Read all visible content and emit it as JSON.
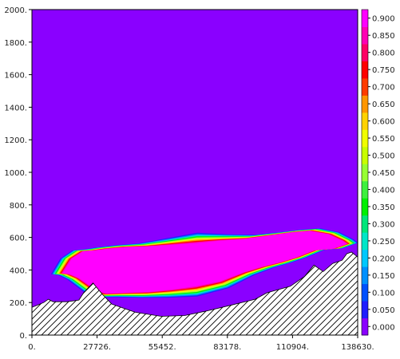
{
  "chart_data": {
    "type": "heatmap",
    "xlim": [
      0,
      138630
    ],
    "ylim": [
      0,
      2000
    ],
    "x_ticks": [
      0,
      27726,
      55452,
      83178,
      110904,
      138630
    ],
    "x_tick_labels": [
      "0.",
      "27726.",
      "55452.",
      "83178.",
      "110904.",
      "138630."
    ],
    "y_ticks": [
      0,
      200,
      400,
      600,
      800,
      1000,
      1200,
      1400,
      1600,
      1800,
      2000
    ],
    "y_tick_labels": [
      "0.",
      "200.",
      "400.",
      "600.",
      "800.",
      "1000.",
      "1200.",
      "1400.",
      "1600.",
      "1800.",
      "2000."
    ],
    "colorbar": {
      "levels": [
        0.0,
        0.05,
        0.1,
        0.15,
        0.2,
        0.25,
        0.3,
        0.35,
        0.4,
        0.45,
        0.5,
        0.55,
        0.6,
        0.65,
        0.7,
        0.75,
        0.8,
        0.85,
        0.9
      ],
      "labels": [
        "0.000",
        "0.050",
        "0.100",
        "0.150",
        "0.200",
        "0.250",
        "0.300",
        "0.350",
        "0.400",
        "0.450",
        "0.500",
        "0.550",
        "0.600",
        "0.650",
        "0.700",
        "0.750",
        "0.800",
        "0.850",
        "0.900"
      ],
      "colors": [
        "#8a00ff",
        "#1e1eff",
        "#0050ff",
        "#0090ff",
        "#00c8ff",
        "#00e6c8",
        "#00e67a",
        "#00f000",
        "#3cf03c",
        "#96ff32",
        "#c8ff00",
        "#f0ff00",
        "#ffd200",
        "#ff9600",
        "#ff3c00",
        "#ff0000",
        "#ff0064",
        "#ff00b4",
        "#ff00ff"
      ]
    },
    "background_value": 0.0,
    "terrain_profile": [
      [
        0,
        170
      ],
      [
        5000,
        200
      ],
      [
        7000,
        220
      ],
      [
        9000,
        205
      ],
      [
        15000,
        205
      ],
      [
        20000,
        215
      ],
      [
        22000,
        260
      ],
      [
        26000,
        320
      ],
      [
        30000,
        250
      ],
      [
        34000,
        190
      ],
      [
        40000,
        160
      ],
      [
        44000,
        140
      ],
      [
        55000,
        115
      ],
      [
        65000,
        120
      ],
      [
        75000,
        150
      ],
      [
        85000,
        185
      ],
      [
        95000,
        220
      ],
      [
        100000,
        260
      ],
      [
        105000,
        280
      ],
      [
        110000,
        300
      ],
      [
        116000,
        360
      ],
      [
        120000,
        430
      ],
      [
        124000,
        390
      ],
      [
        128000,
        440
      ],
      [
        132000,
        460
      ],
      [
        134000,
        500
      ],
      [
        136000,
        510
      ],
      [
        138630,
        480
      ]
    ],
    "high_value_region": {
      "value": 0.9,
      "outline": [
        [
          13000,
          380
        ],
        [
          17000,
          470
        ],
        [
          22000,
          515
        ],
        [
          27000,
          520
        ],
        [
          32000,
          530
        ],
        [
          40000,
          540
        ],
        [
          50000,
          545
        ],
        [
          60000,
          555
        ],
        [
          70000,
          565
        ],
        [
          80000,
          580
        ],
        [
          90000,
          590
        ],
        [
          100000,
          610
        ],
        [
          110000,
          630
        ],
        [
          118000,
          640
        ],
        [
          126000,
          620
        ],
        [
          132000,
          580
        ],
        [
          134000,
          560
        ],
        [
          128000,
          530
        ],
        [
          120000,
          520
        ],
        [
          112000,
          475
        ],
        [
          105000,
          445
        ],
        [
          98000,
          420
        ],
        [
          90000,
          385
        ],
        [
          80000,
          330
        ],
        [
          70000,
          300
        ],
        [
          60000,
          280
        ],
        [
          50000,
          265
        ],
        [
          40000,
          260
        ],
        [
          32000,
          255
        ],
        [
          28000,
          270
        ],
        [
          24000,
          310
        ],
        [
          20000,
          350
        ],
        [
          16000,
          375
        ]
      ]
    }
  }
}
